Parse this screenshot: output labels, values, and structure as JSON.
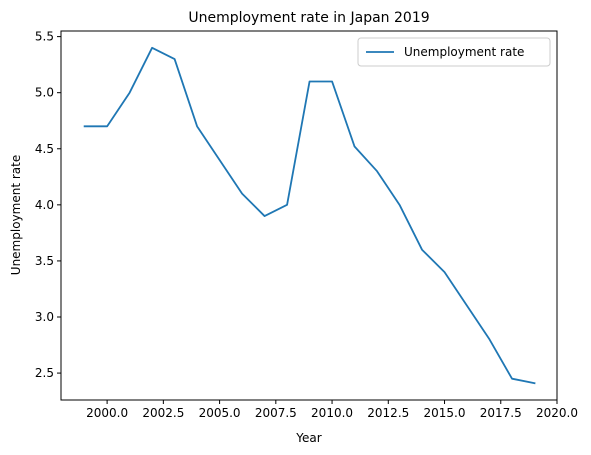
{
  "chart_data": {
    "type": "line",
    "title": "Unemployment rate in Japan 2019",
    "xlabel": "Year",
    "ylabel": "Unemployment rate",
    "xlim": [
      1997.95,
      2020.0
    ],
    "ylim": [
      2.26,
      5.55
    ],
    "xticks": [
      "2000.0",
      "2002.5",
      "2005.0",
      "2007.5",
      "2010.0",
      "2012.5",
      "2015.0",
      "2017.5",
      "2020.0"
    ],
    "xtick_values": [
      2000.0,
      2002.5,
      2005.0,
      2007.5,
      2010.0,
      2012.5,
      2015.0,
      2017.5,
      2020.0
    ],
    "yticks": [
      "2.5",
      "3.0",
      "3.5",
      "4.0",
      "4.5",
      "5.0",
      "5.5"
    ],
    "ytick_values": [
      2.5,
      3.0,
      3.5,
      4.0,
      4.5,
      5.0,
      5.5
    ],
    "grid": false,
    "legend_position": "top-right",
    "series": [
      {
        "name": "Unemployment rate",
        "color": "#1f77b4",
        "x": [
          1999,
          2000,
          2001,
          2002,
          2003,
          2004,
          2005,
          2006,
          2007,
          2008,
          2009,
          2010,
          2011,
          2012,
          2013,
          2014,
          2015,
          2016,
          2017,
          2018,
          2019
        ],
        "y": [
          4.7,
          4.7,
          5.0,
          5.4,
          5.3,
          4.7,
          4.4,
          4.1,
          3.9,
          4.0,
          5.1,
          5.1,
          4.52,
          4.3,
          4.0,
          3.6,
          3.4,
          3.1,
          2.8,
          2.45,
          2.41
        ]
      }
    ]
  }
}
